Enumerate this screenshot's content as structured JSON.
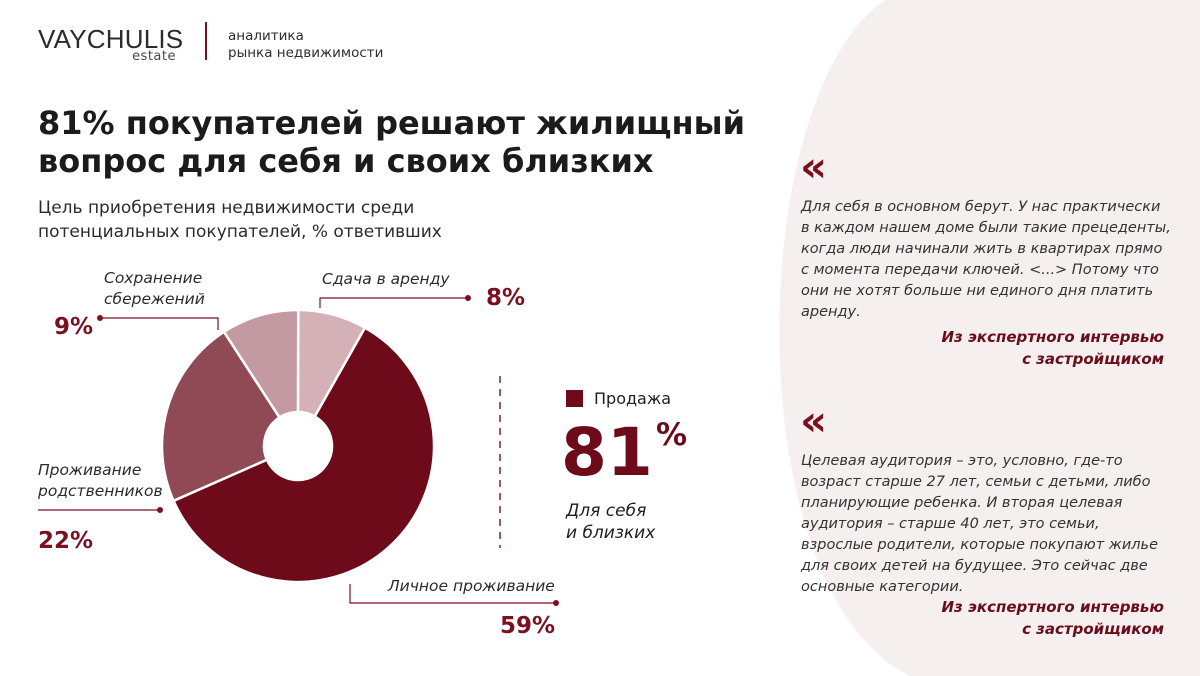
{
  "header": {
    "logo_main": "VAYCHULIS",
    "logo_sub": "estate",
    "tagline_line1": "аналитика",
    "tagline_line2": "рынка недвижимости"
  },
  "title_line1": "81% покупателей решают жилищный",
  "title_line2": "вопрос для себя и своих близких",
  "subtitle_line1": "Цель приобретения недвижимости среди",
  "subtitle_line2": "потенциальных покупателей, % ответивших",
  "labels": {
    "savings_line1": "Сохранение",
    "savings_line2": "сбережений",
    "savings_pct": "9%",
    "rent": "Сдача в аренду",
    "rent_pct": "8%",
    "relatives_line1": "Проживание",
    "relatives_line2": "родственников",
    "relatives_pct": "22%",
    "personal": "Личное проживание",
    "personal_pct": "59%"
  },
  "sale": {
    "legend": "Продажа",
    "big_value": "81",
    "big_unit": "%",
    "caption_line1": "Для себя",
    "caption_line2": "и близких"
  },
  "quotes": [
    {
      "mark": "«",
      "text": "Для себя в основном берут. У нас практически в каждом нашем доме были такие прецеденты, когда люди начинали жить в квартирах прямо с момента передачи ключей. <...> Потому что они не хотят больше ни единого дня платить аренду.",
      "source_line1": "Из экспертного интервью",
      "source_line2": "с застройщиком"
    },
    {
      "mark": "«",
      "text": "Целевая аудитория – это, условно, где-то возраст старше 27 лет, семьи с детьми, либо планирующие ребенка. И вторая целевая аудитория – старше 40 лет, это семьи, взрослые родители, которые покупают жилье для своих детей на будущее. Это сейчас две основные категории.",
      "source_line1": "Из экспертного интервью",
      "source_line2": "с застройщиком"
    }
  ],
  "colors": {
    "accent": "#7a1020",
    "panel": "#f5eff0"
  },
  "chart_data": {
    "type": "pie",
    "title": "Цель приобретения недвижимости среди потенциальных покупателей, % ответивших",
    "categories": [
      "Личное проживание",
      "Проживание родственников",
      "Сохранение сбережений",
      "Сдача в аренду"
    ],
    "values": [
      59,
      22,
      9,
      8
    ],
    "colors": [
      "#6e0b1a",
      "#8f4a56",
      "#c39aa2",
      "#d3b1b7"
    ],
    "grouped": {
      "label": "Продажа",
      "value": 81
    }
  }
}
